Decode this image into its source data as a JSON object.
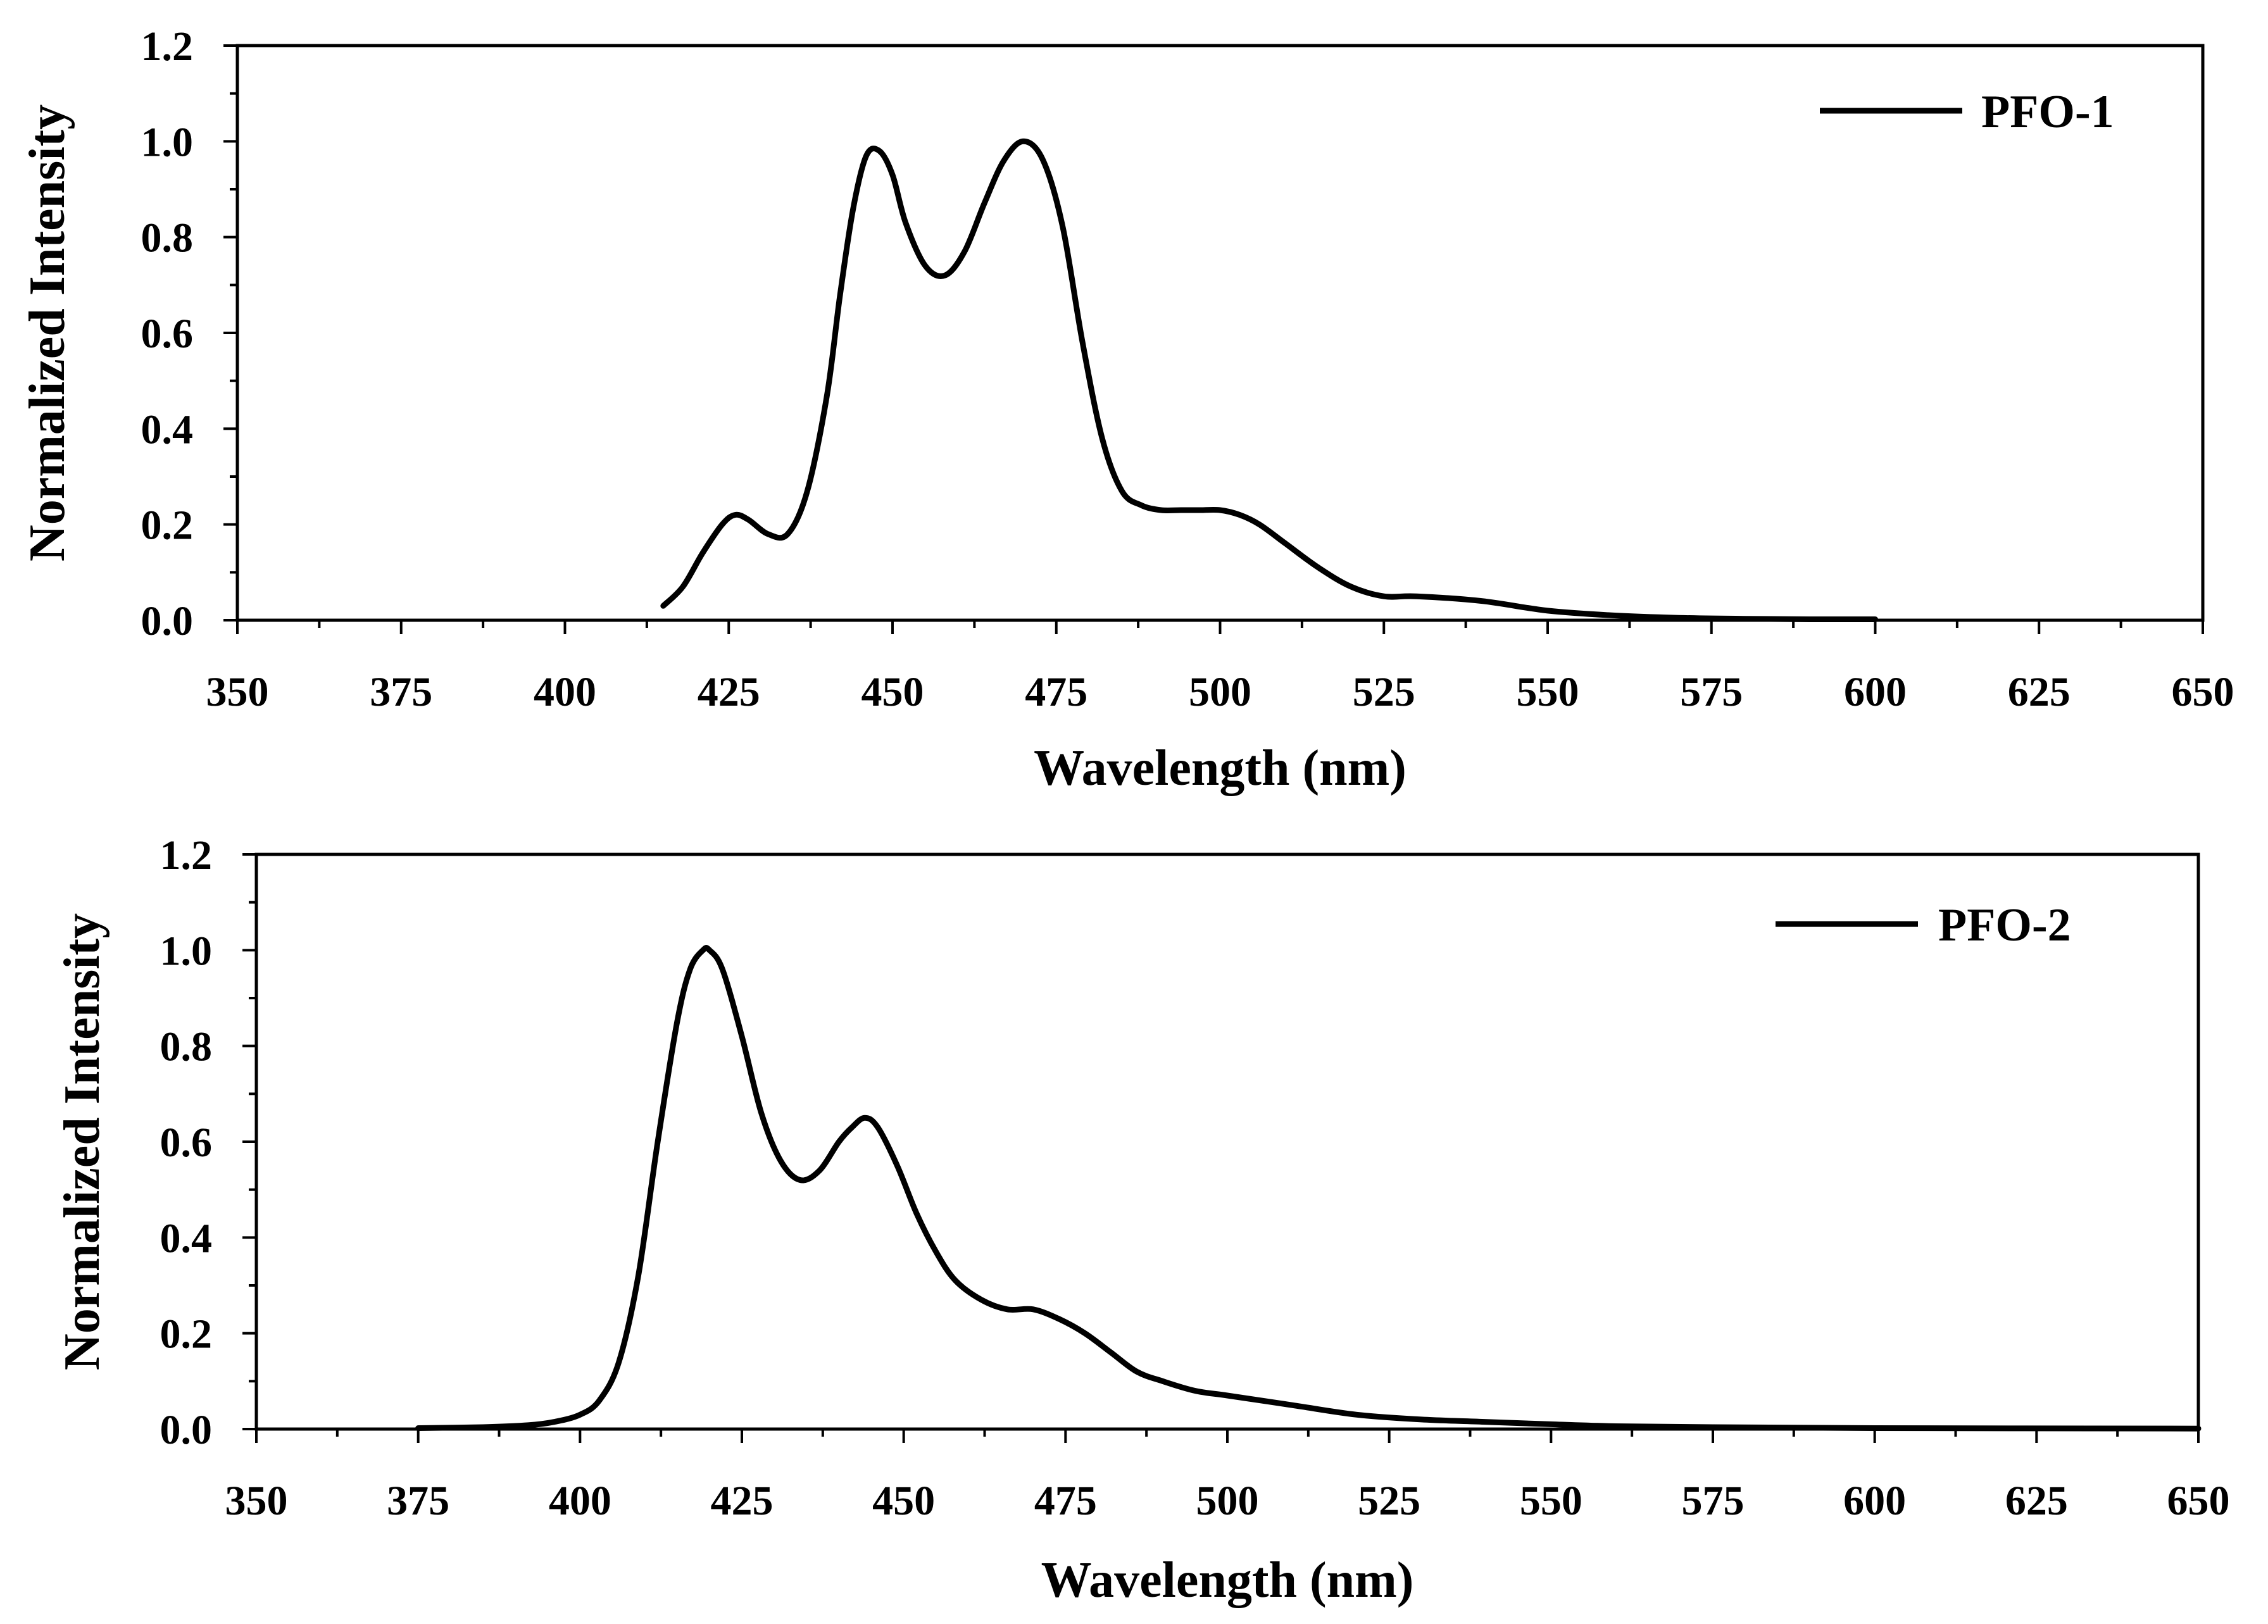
{
  "chart_data": [
    {
      "type": "line",
      "xlabel": "Wavelength (nm)",
      "ylabel": "Normalized Intensity",
      "xlim": [
        350,
        650
      ],
      "ylim": [
        0.0,
        1.2
      ],
      "xticks": [
        "350",
        "375",
        "400",
        "425",
        "450",
        "475",
        "500",
        "525",
        "550",
        "575",
        "600",
        "625",
        "650"
      ],
      "yticks": [
        "0.0",
        "0.2",
        "0.4",
        "0.6",
        "0.8",
        "1.0",
        "1.2"
      ],
      "legend_position": "top-right",
      "grid": false,
      "series": [
        {
          "name": "PFO-1",
          "x": [
            415,
            418,
            421,
            424,
            426,
            428,
            431,
            434,
            437,
            440,
            442,
            444,
            446,
            448,
            450,
            452,
            455,
            458,
            461,
            464,
            467,
            470,
            473,
            476,
            479,
            482,
            485,
            488,
            491,
            494,
            497,
            500,
            503,
            506,
            510,
            515,
            520,
            525,
            530,
            540,
            550,
            560,
            570,
            580,
            590,
            600
          ],
          "y": [
            0.03,
            0.07,
            0.14,
            0.2,
            0.22,
            0.21,
            0.18,
            0.18,
            0.27,
            0.47,
            0.68,
            0.86,
            0.97,
            0.98,
            0.93,
            0.83,
            0.74,
            0.72,
            0.77,
            0.87,
            0.96,
            1.0,
            0.96,
            0.82,
            0.58,
            0.38,
            0.27,
            0.24,
            0.23,
            0.23,
            0.23,
            0.23,
            0.22,
            0.2,
            0.16,
            0.11,
            0.07,
            0.05,
            0.05,
            0.04,
            0.02,
            0.01,
            0.005,
            0.003,
            0.002,
            0.002
          ]
        },
        {
          "name": "PFO-2",
          "x": [
            375,
            385,
            392,
            396,
            400,
            403,
            406,
            409,
            412,
            415,
            417,
            419,
            420,
            422,
            425,
            428,
            431,
            434,
            437,
            440,
            442,
            444,
            446,
            449,
            452,
            455,
            458,
            462,
            466,
            470,
            474,
            478,
            482,
            486,
            490,
            495,
            500,
            510,
            520,
            530,
            540,
            550,
            560,
            575,
            600,
            650
          ],
          "y": [
            0.002,
            0.004,
            0.008,
            0.015,
            0.03,
            0.06,
            0.14,
            0.32,
            0.6,
            0.85,
            0.96,
            1.0,
            1.0,
            0.96,
            0.82,
            0.66,
            0.56,
            0.52,
            0.54,
            0.6,
            0.63,
            0.65,
            0.63,
            0.55,
            0.45,
            0.37,
            0.31,
            0.27,
            0.25,
            0.25,
            0.23,
            0.2,
            0.16,
            0.12,
            0.1,
            0.08,
            0.07,
            0.05,
            0.03,
            0.02,
            0.015,
            0.01,
            0.006,
            0.004,
            0.002,
            0.001
          ]
        }
      ]
    }
  ]
}
